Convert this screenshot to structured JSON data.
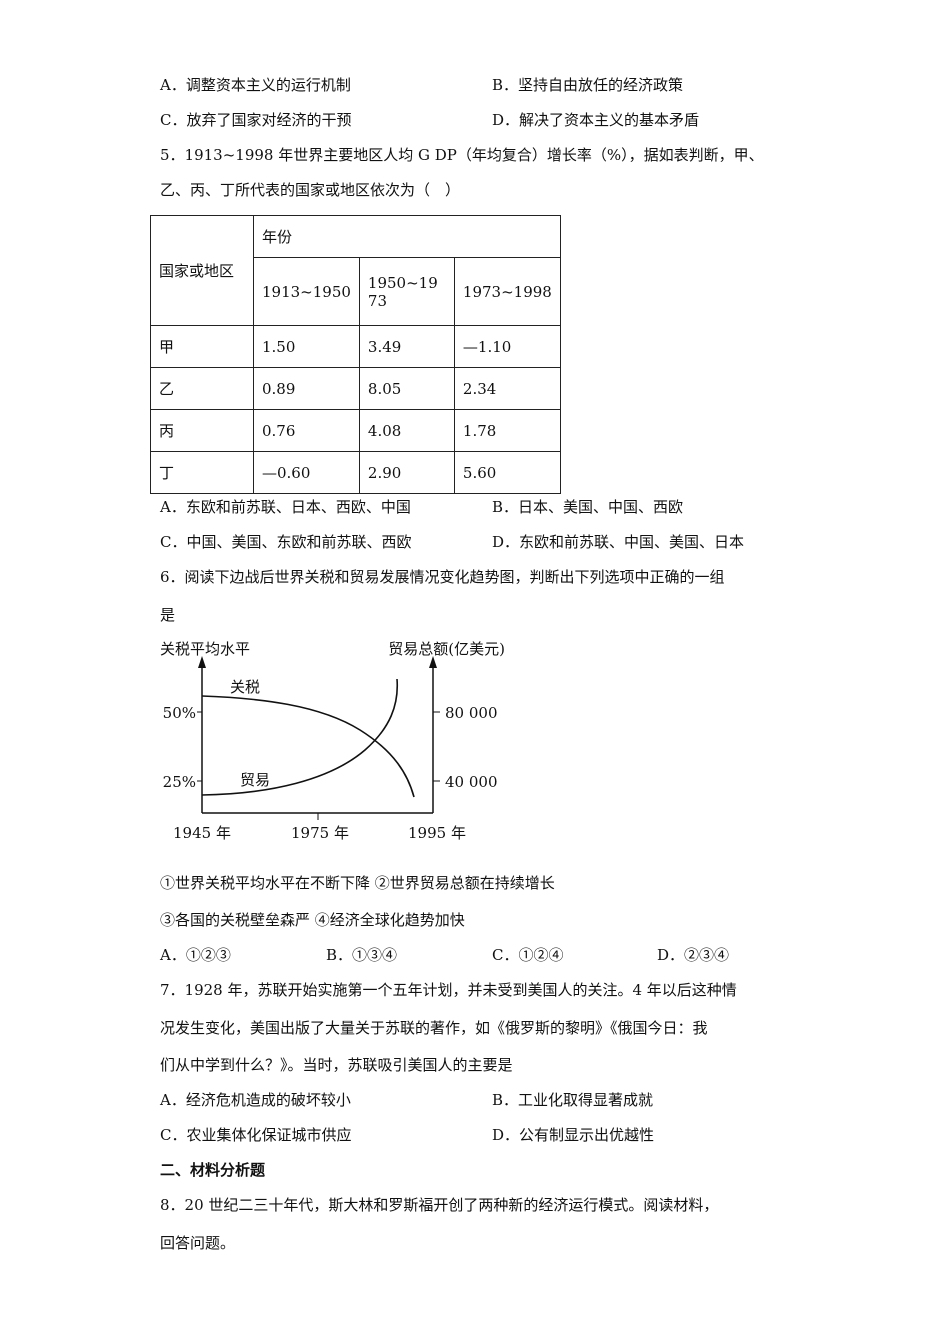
{
  "q4_options": {
    "A": "A．调整资本主义的运行机制",
    "B": "B．坚持自由放任的经济政策",
    "C": "C．放弃了国家对经济的干预",
    "D": "D．解决了资本主义的基本矛盾"
  },
  "q5": {
    "stem_line1": "5．1913~1998 年世界主要地区人均 G DP（年均复合）增长率（%），据如表判断，甲、",
    "stem_line2": "乙、丙、丁所代表的国家或地区依次为（　）",
    "table": {
      "row_header": "国家或地区",
      "group_header": "年份",
      "columns": [
        "1913~1950",
        "1950~1973",
        "1973~1998"
      ],
      "rows": [
        {
          "label": "甲",
          "values": [
            "1.50",
            "3.49",
            "—1.10"
          ]
        },
        {
          "label": "乙",
          "values": [
            "0.89",
            "8.05",
            "2.34"
          ]
        },
        {
          "label": "丙",
          "values": [
            "0.76",
            "4.08",
            "1.78"
          ]
        },
        {
          "label": "丁",
          "values": [
            "—0.60",
            "2.90",
            "5.60"
          ]
        }
      ]
    },
    "options": {
      "A": "A．东欧和前苏联、日本、西欧、中国",
      "B": "B．日本、美国、中国、西欧",
      "C": "C．中国、美国、东欧和前苏联、西欧",
      "D": "D．东欧和前苏联、中国、美国、日本"
    }
  },
  "q6": {
    "stem_line1": "6．阅读下边战后世界关税和贸易发展情况变化趋势图，判断出下列选项中正确的一组",
    "stem_line2": "是",
    "figure": {
      "left_axis_title": "关税平均水平",
      "right_axis_title": "贸易总额(亿美元)",
      "left_ticks": [
        "50%",
        "25%"
      ],
      "right_ticks": [
        "80 000",
        "40 000"
      ],
      "x_ticks": [
        "1945 年",
        "1975 年",
        "1995 年"
      ],
      "curve_labels": {
        "tariff": "关税",
        "trade": "贸易"
      }
    },
    "statements_line1": "①世界关税平均水平在不断下降  ②世界贸易总额在持续增长",
    "statements_line2": "③各国的关税壁垒森严  ④经济全球化趋势加快",
    "options": {
      "A": "A．①②③",
      "B": "B．①③④",
      "C": "C．①②④",
      "D": "D．②③④"
    }
  },
  "q7": {
    "stem_line1": "7．1928 年，苏联开始实施第一个五年计划，并未受到美国人的关注。4 年以后这种情",
    "stem_line2": "况发生变化，美国出版了大量关于苏联的著作，如《俄罗斯的黎明》《俄国今日：我",
    "stem_line3": "们从中学到什么？》。当时，苏联吸引美国人的主要是",
    "options": {
      "A": "A．经济危机造成的破坏较小",
      "B": "B．工业化取得显著成就",
      "C": "C．农业集体化保证城市供应",
      "D": "D．公有制显示出优越性"
    }
  },
  "section2": {
    "title": "二、材料分析题",
    "q8_line1": "8．20 世纪二三十年代，斯大林和罗斯福开创了两种新的经济运行模式。阅读材料，",
    "q8_line2": "回答问题。"
  }
}
